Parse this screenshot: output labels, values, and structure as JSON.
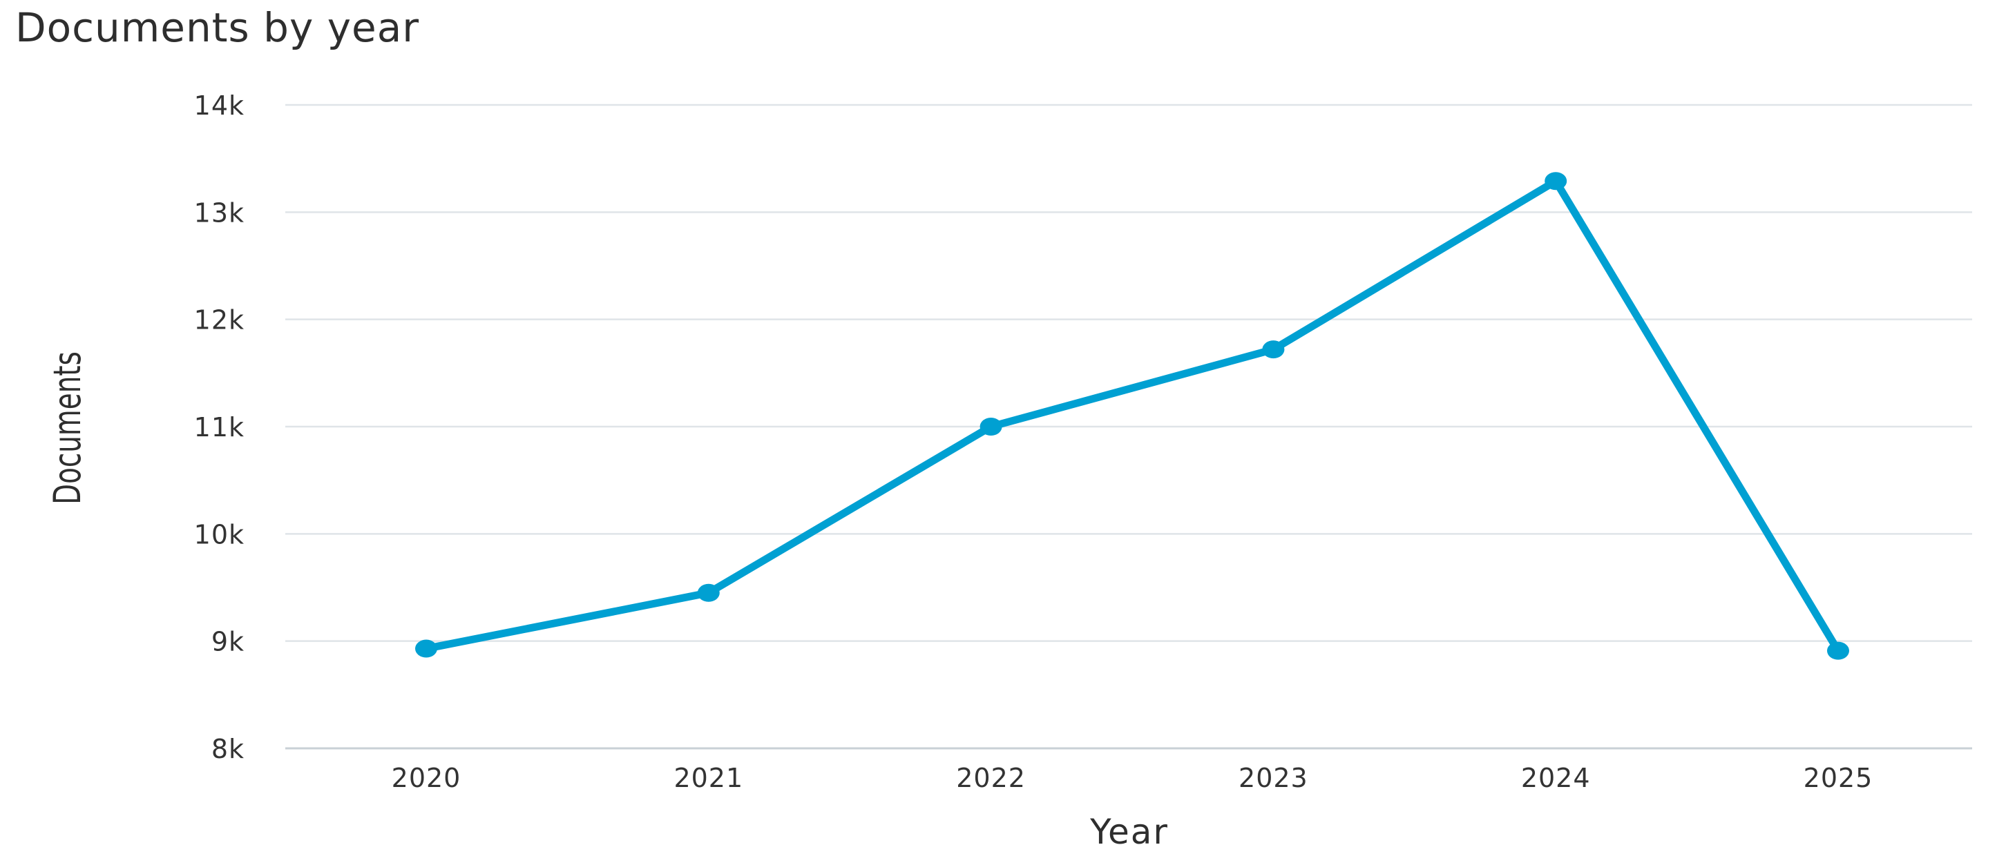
{
  "chart_data": {
    "type": "line",
    "title": "Documents by year",
    "xlabel": "Year",
    "ylabel": "Documents",
    "categories": [
      "2020",
      "2021",
      "2022",
      "2023",
      "2024",
      "2025"
    ],
    "series": [
      {
        "values": [
          8930,
          9450,
          11000,
          11720,
          13290,
          8910
        ],
        "color": "#00a0d2"
      }
    ],
    "ylim": [
      8000,
      14000
    ],
    "yticks": [
      8000,
      9000,
      10000,
      11000,
      12000,
      13000,
      14000
    ],
    "ytick_labels": [
      "8k",
      "9k",
      "10k",
      "11k",
      "12k",
      "13k",
      "14k"
    ],
    "grid": true,
    "legend": "none",
    "markers": true
  }
}
